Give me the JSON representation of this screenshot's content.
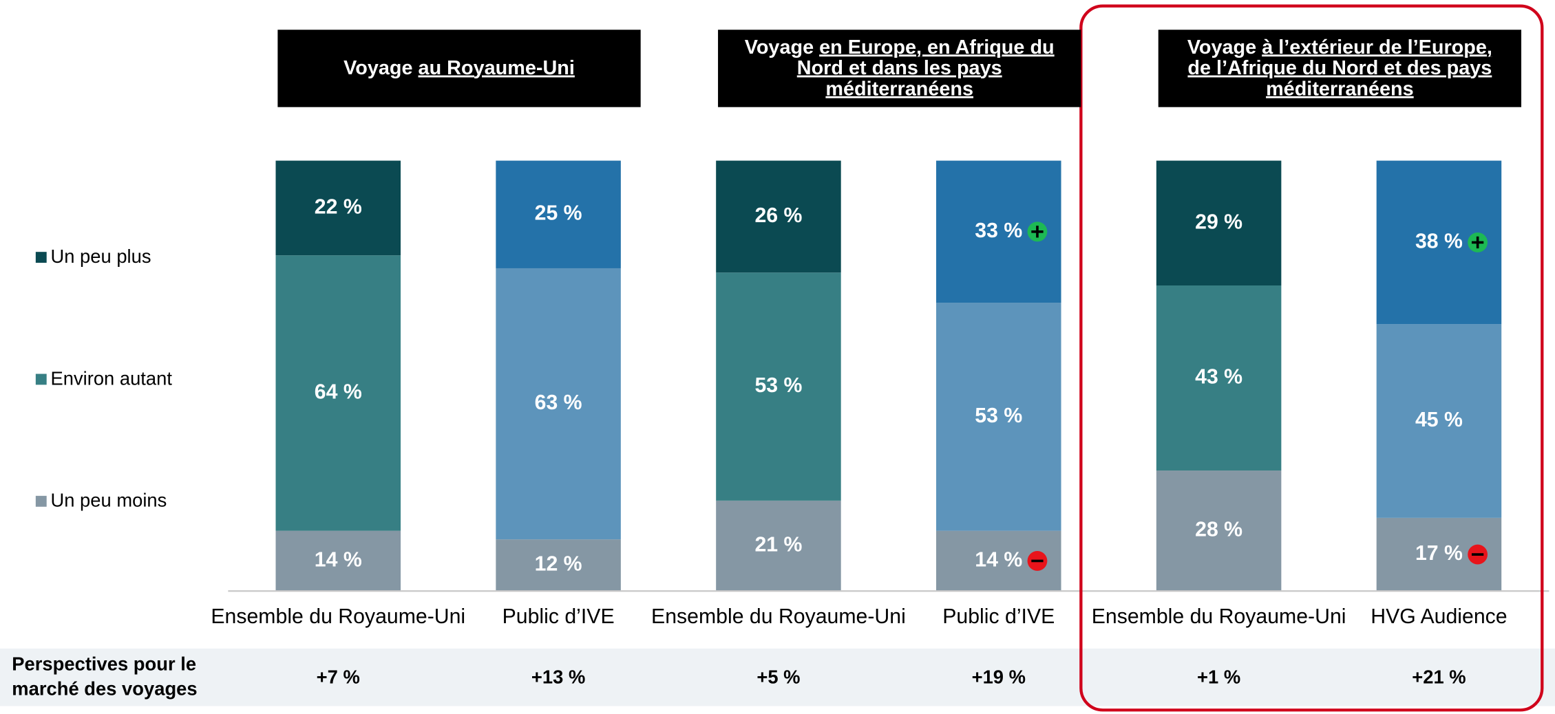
{
  "chart_data": {
    "type": "stacked_bar",
    "categories": [
      "Ensemble du Royaume-Uni",
      "Public d’IVE",
      "Ensemble du Royaume-Uni",
      "Public d’IVE",
      "Ensemble du Royaume-Uni",
      "HVG Audience"
    ],
    "groups": [
      {
        "title": "Voyage",
        "title_emphasis": "au Royaume-Uni"
      },
      {
        "title": "Voyage",
        "title_emphasis": "en Europe, en Afrique du Nord et dans les pays méditerranéens"
      },
      {
        "title": "Voyage",
        "title_emphasis": "à l’extérieur de l’Europe, de l’Afrique du Nord et des pays méditerranéens"
      }
    ],
    "series": [
      {
        "name": "Un peu plus",
        "color": "#0b4a52",
        "colors": [
          "#0b4a52",
          "#2472a9",
          "#0b4a52",
          "#2472a9",
          "#0b4a52",
          "#2472a9"
        ],
        "values": [
          22,
          25,
          26,
          33,
          29,
          38
        ],
        "value_labels": [
          "22 %",
          "25 %",
          "26 %",
          "33 %",
          "29 %",
          "38 %"
        ],
        "significance": [
          null,
          null,
          null,
          "up",
          null,
          "up"
        ]
      },
      {
        "name": "Environ autant",
        "color": "#377f84",
        "colors": [
          "#377f84",
          "#5d94bb",
          "#377f84",
          "#5d94bb",
          "#377f84",
          "#5d94bb"
        ],
        "values": [
          64,
          63,
          53,
          53,
          43,
          45
        ],
        "value_labels": [
          "64 %",
          "63 %",
          "53 %",
          "53 %",
          "43 %",
          "45 %"
        ],
        "significance": [
          null,
          null,
          null,
          null,
          null,
          null
        ]
      },
      {
        "name": "Un peu moins",
        "color": "#8597a4",
        "colors": [
          "#8597a4",
          "#8597a4",
          "#8597a4",
          "#8597a4",
          "#8597a4",
          "#8597a4"
        ],
        "values": [
          14,
          12,
          21,
          14,
          28,
          17
        ],
        "value_labels": [
          "14 %",
          "12 %",
          "21 %",
          "14 %",
          "28 %",
          "17 %"
        ],
        "significance": [
          null,
          null,
          null,
          "down",
          null,
          "down"
        ]
      }
    ],
    "ylim": [
      0,
      100
    ],
    "legend": "left",
    "highlight_group": 2,
    "outlook": {
      "label": "Perspectives pour le marché des voyages",
      "values": [
        7,
        13,
        5,
        19,
        1,
        21
      ],
      "value_labels": [
        "+7 %",
        "+13 %",
        "+5 %",
        "+19 %",
        "+1 %",
        "+21 %"
      ]
    }
  }
}
